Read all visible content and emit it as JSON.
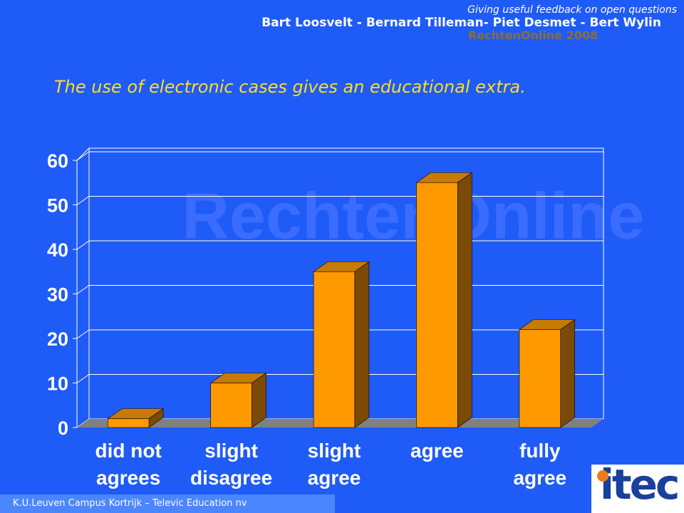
{
  "header": {
    "subtitle": "Giving useful feedback on open questions",
    "authors": "Bart Loosvelt  - Bernard Tilleman- Piet Desmet  - Bert Wylin",
    "event": "RechtenOnline 2008"
  },
  "footer": "K.U.Leuven Campus Kortrijk – Televic Education nv",
  "watermark": "RechtenOnline",
  "logo": "itec",
  "chart_data": {
    "type": "bar3d",
    "title": "The use of electronic cases gives an educational extra.",
    "categories": [
      "did not agrees",
      "slight disagree",
      "slight agree",
      "agree",
      "fully agree"
    ],
    "values": [
      2,
      10,
      35,
      55,
      22
    ],
    "color": "#ff9900",
    "ylim": [
      0,
      60
    ],
    "yticks": [
      0,
      10,
      20,
      30,
      40,
      50,
      60
    ],
    "grid": true
  }
}
